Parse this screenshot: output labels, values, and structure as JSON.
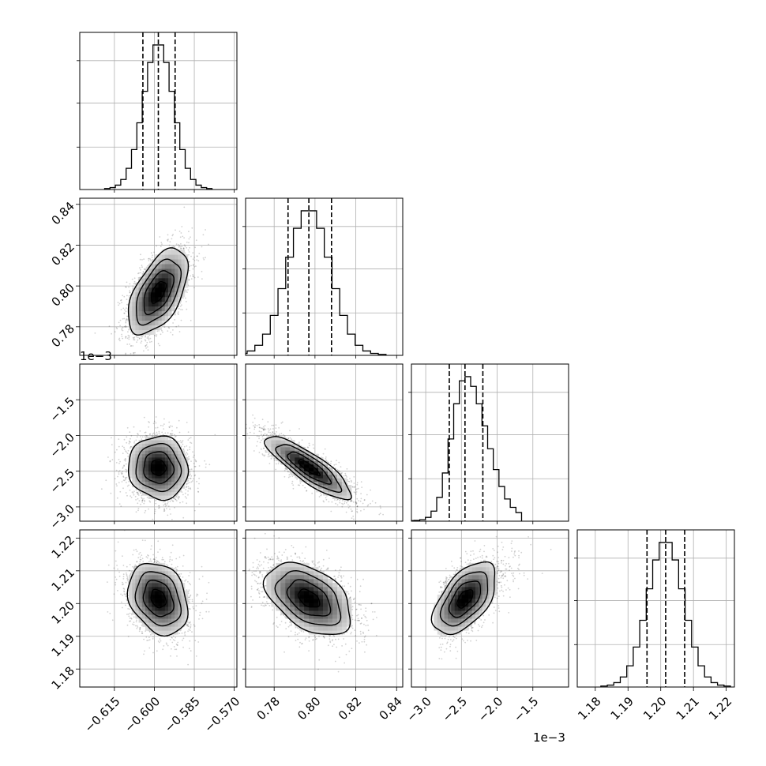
{
  "chart_data": {
    "type": "corner",
    "grid": true,
    "parameters": [
      {
        "range": [
          -0.628,
          -0.569
        ],
        "ticks": [
          -0.615,
          -0.6,
          -0.585,
          -0.57
        ],
        "tick_labels": [
          "−0.615",
          "−0.600",
          "−0.585",
          "−0.570"
        ],
        "center": -0.5985,
        "sigma": 0.0056,
        "quantiles": [
          -0.6043,
          -0.5985,
          -0.5922
        ],
        "offset": ""
      },
      {
        "range": [
          0.766,
          0.843
        ],
        "ticks": [
          0.78,
          0.8,
          0.82,
          0.84
        ],
        "tick_labels": [
          "0.78",
          "0.80",
          "0.82",
          "0.84"
        ],
        "center": 0.797,
        "sigma": 0.0105,
        "quantiles": [
          0.7868,
          0.797,
          0.8081
        ],
        "offset": ""
      },
      {
        "range": [
          -3.2,
          -1.0
        ],
        "ticks": [
          -3.0,
          -2.5,
          -2.0,
          -1.5
        ],
        "tick_labels": [
          "−3.0",
          "−2.5",
          "−2.0",
          "−1.5"
        ],
        "center": -2.45,
        "sigma": 0.22,
        "quantiles": [
          -2.67,
          -2.45,
          -2.2
        ],
        "offset": "1e−3"
      },
      {
        "range": [
          1.1745,
          1.2225
        ],
        "ticks": [
          1.18,
          1.19,
          1.2,
          1.21,
          1.22
        ],
        "tick_labels": [
          "1.18",
          "1.19",
          "1.20",
          "1.21",
          "1.22"
        ],
        "center": 1.2015,
        "sigma": 0.0055,
        "quantiles": [
          1.1958,
          1.2015,
          1.2073
        ],
        "offset": ""
      }
    ],
    "correlations": [
      [
        1.0,
        0.55,
        -0.05,
        -0.25
      ],
      [
        0.55,
        1.0,
        -0.85,
        -0.45
      ],
      [
        -0.05,
        -0.85,
        1.0,
        0.55
      ],
      [
        -0.25,
        -0.45,
        0.55,
        1.0
      ]
    ]
  }
}
